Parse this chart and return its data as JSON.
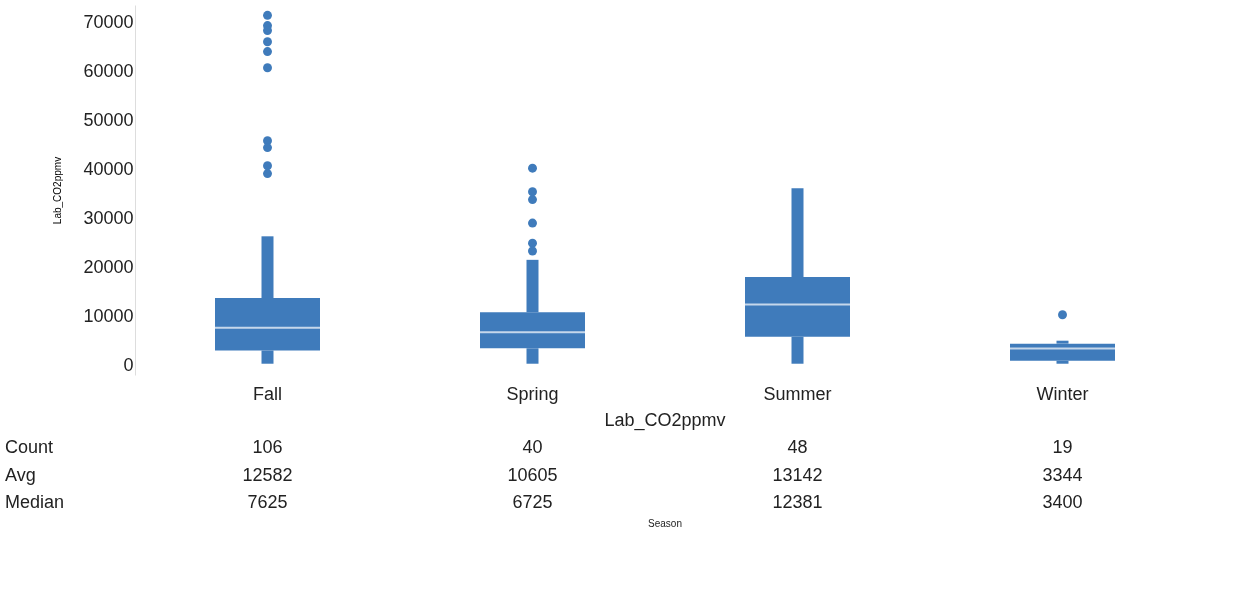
{
  "chart_data": {
    "type": "box",
    "ylabel": "Lab_CO2ppmv",
    "categories": [
      "Fall",
      "Spring",
      "Summer",
      "Winter"
    ],
    "series": [
      {
        "color": "#3f7bbb",
        "boxes": [
          {
            "low": 300,
            "q1": 3000,
            "median": 7625,
            "q3": 13700,
            "high": 26300,
            "outliers": [
              71400,
              69300,
              68300,
              66000,
              64000,
              60700,
              45800,
              44400,
              40700,
              39100
            ]
          },
          {
            "low": 300,
            "q1": 3450,
            "median": 6725,
            "q3": 10800,
            "high": 21500,
            "outliers": [
              40200,
              35400,
              33800,
              29000,
              24900,
              23300
            ]
          },
          {
            "low": 300,
            "q1": 5800,
            "median": 12381,
            "q3": 18000,
            "high": 36100
          },
          {
            "low": 300,
            "q1": 900,
            "median": 3400,
            "q3": 4400,
            "high": 5000,
            "outliers": [
              10300
            ]
          }
        ]
      }
    ],
    "ylim": [
      -2000,
      73500
    ],
    "yticks": [
      0,
      10000,
      20000,
      30000,
      40000,
      50000,
      60000,
      70000
    ],
    "grid": false,
    "annotations": [
      "Lab_CO2ppmv",
      "Count",
      "106",
      "40",
      "48",
      "19",
      "Avg",
      "12582",
      "10605",
      "13142",
      "3344",
      "Median",
      "7625",
      "6725",
      "12381",
      "3400",
      "Season"
    ]
  }
}
